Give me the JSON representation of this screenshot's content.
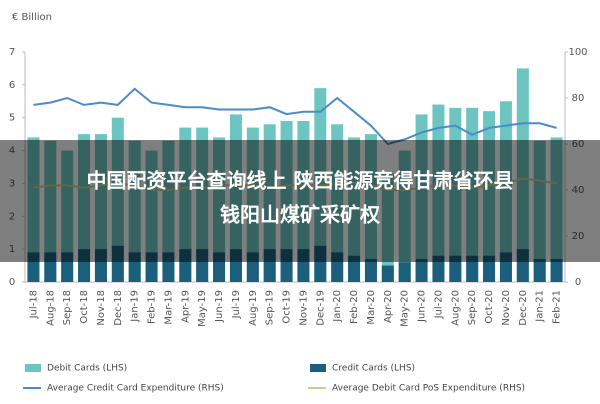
{
  "chart_data": {
    "type": "bar_line",
    "y_label": "€ Billion",
    "categories": [
      "Jul-18",
      "Aug-18",
      "Sep-18",
      "Oct-18",
      "Nov-18",
      "Dec-18",
      "Jan-19",
      "Feb-19",
      "Mar-19",
      "Apr-19",
      "May-19",
      "Jun-19",
      "Jul-19",
      "Aug-19",
      "Sep-19",
      "Oct-19",
      "Nov-19",
      "Dec-19",
      "Jan-20",
      "Feb-20",
      "Mar-20",
      "Apr-20",
      "May-20",
      "Jun-20",
      "Jul-20",
      "Aug-20",
      "Sep-20",
      "Oct-20",
      "Nov-20",
      "Dec-20",
      "Jan-21",
      "Feb-21"
    ],
    "series": [
      {
        "name": "Debit Cards (LHS)",
        "kind": "bar",
        "color": "#6cc5c0",
        "values": [
          4.4,
          4.3,
          4.0,
          4.5,
          4.5,
          5.0,
          4.3,
          4.0,
          4.3,
          4.7,
          4.7,
          4.4,
          5.1,
          4.7,
          4.8,
          4.9,
          4.9,
          5.9,
          4.8,
          4.4,
          4.5,
          3.3,
          4.0,
          5.1,
          5.4,
          5.3,
          5.3,
          5.2,
          5.5,
          6.5,
          4.3,
          4.4
        ]
      },
      {
        "name": "Credit Cards (LHS)",
        "kind": "bar",
        "color": "#1b5f7c",
        "values": [
          0.9,
          0.9,
          0.9,
          1.0,
          1.0,
          1.1,
          0.9,
          0.9,
          0.9,
          1.0,
          1.0,
          0.9,
          1.0,
          0.9,
          1.0,
          1.0,
          1.0,
          1.1,
          0.9,
          0.8,
          0.7,
          0.5,
          0.6,
          0.7,
          0.8,
          0.8,
          0.8,
          0.8,
          0.9,
          1.0,
          0.7,
          0.7
        ]
      },
      {
        "name": "Average Credit Card Expenditure (RHS)",
        "kind": "line",
        "axis": "y2",
        "color": "#4a8cc9",
        "values": [
          77,
          78,
          80,
          77,
          78,
          77,
          84,
          78,
          77,
          76,
          76,
          75,
          75,
          75,
          76,
          73,
          74,
          74,
          80,
          74,
          68,
          60,
          62,
          65,
          67,
          68,
          64,
          67,
          68,
          69,
          69,
          67
        ]
      },
      {
        "name": "Average Debit Card PoS Expenditure (RHS)",
        "kind": "line",
        "axis": "y2",
        "color": "#c8cf8a",
        "values": [
          41,
          42,
          42,
          41,
          42,
          43,
          42,
          40,
          40,
          41,
          41,
          42,
          42,
          42,
          41,
          42,
          42,
          42,
          43,
          43,
          42,
          40,
          40,
          41,
          42,
          42,
          41,
          42,
          43,
          45,
          44,
          43
        ]
      }
    ],
    "ylim": [
      0,
      7
    ],
    "yticks": [
      0,
      1,
      2,
      3,
      4,
      5,
      6,
      7
    ],
    "y2lim": [
      0,
      100
    ],
    "y2ticks": [
      0,
      20,
      40,
      60,
      80,
      100
    ],
    "grid": false
  },
  "banner": {
    "lines": [
      "中国配资平台查询线上 陕西能源竞得甘肃省环县",
      "钱阳山煤矿采矿权"
    ]
  }
}
